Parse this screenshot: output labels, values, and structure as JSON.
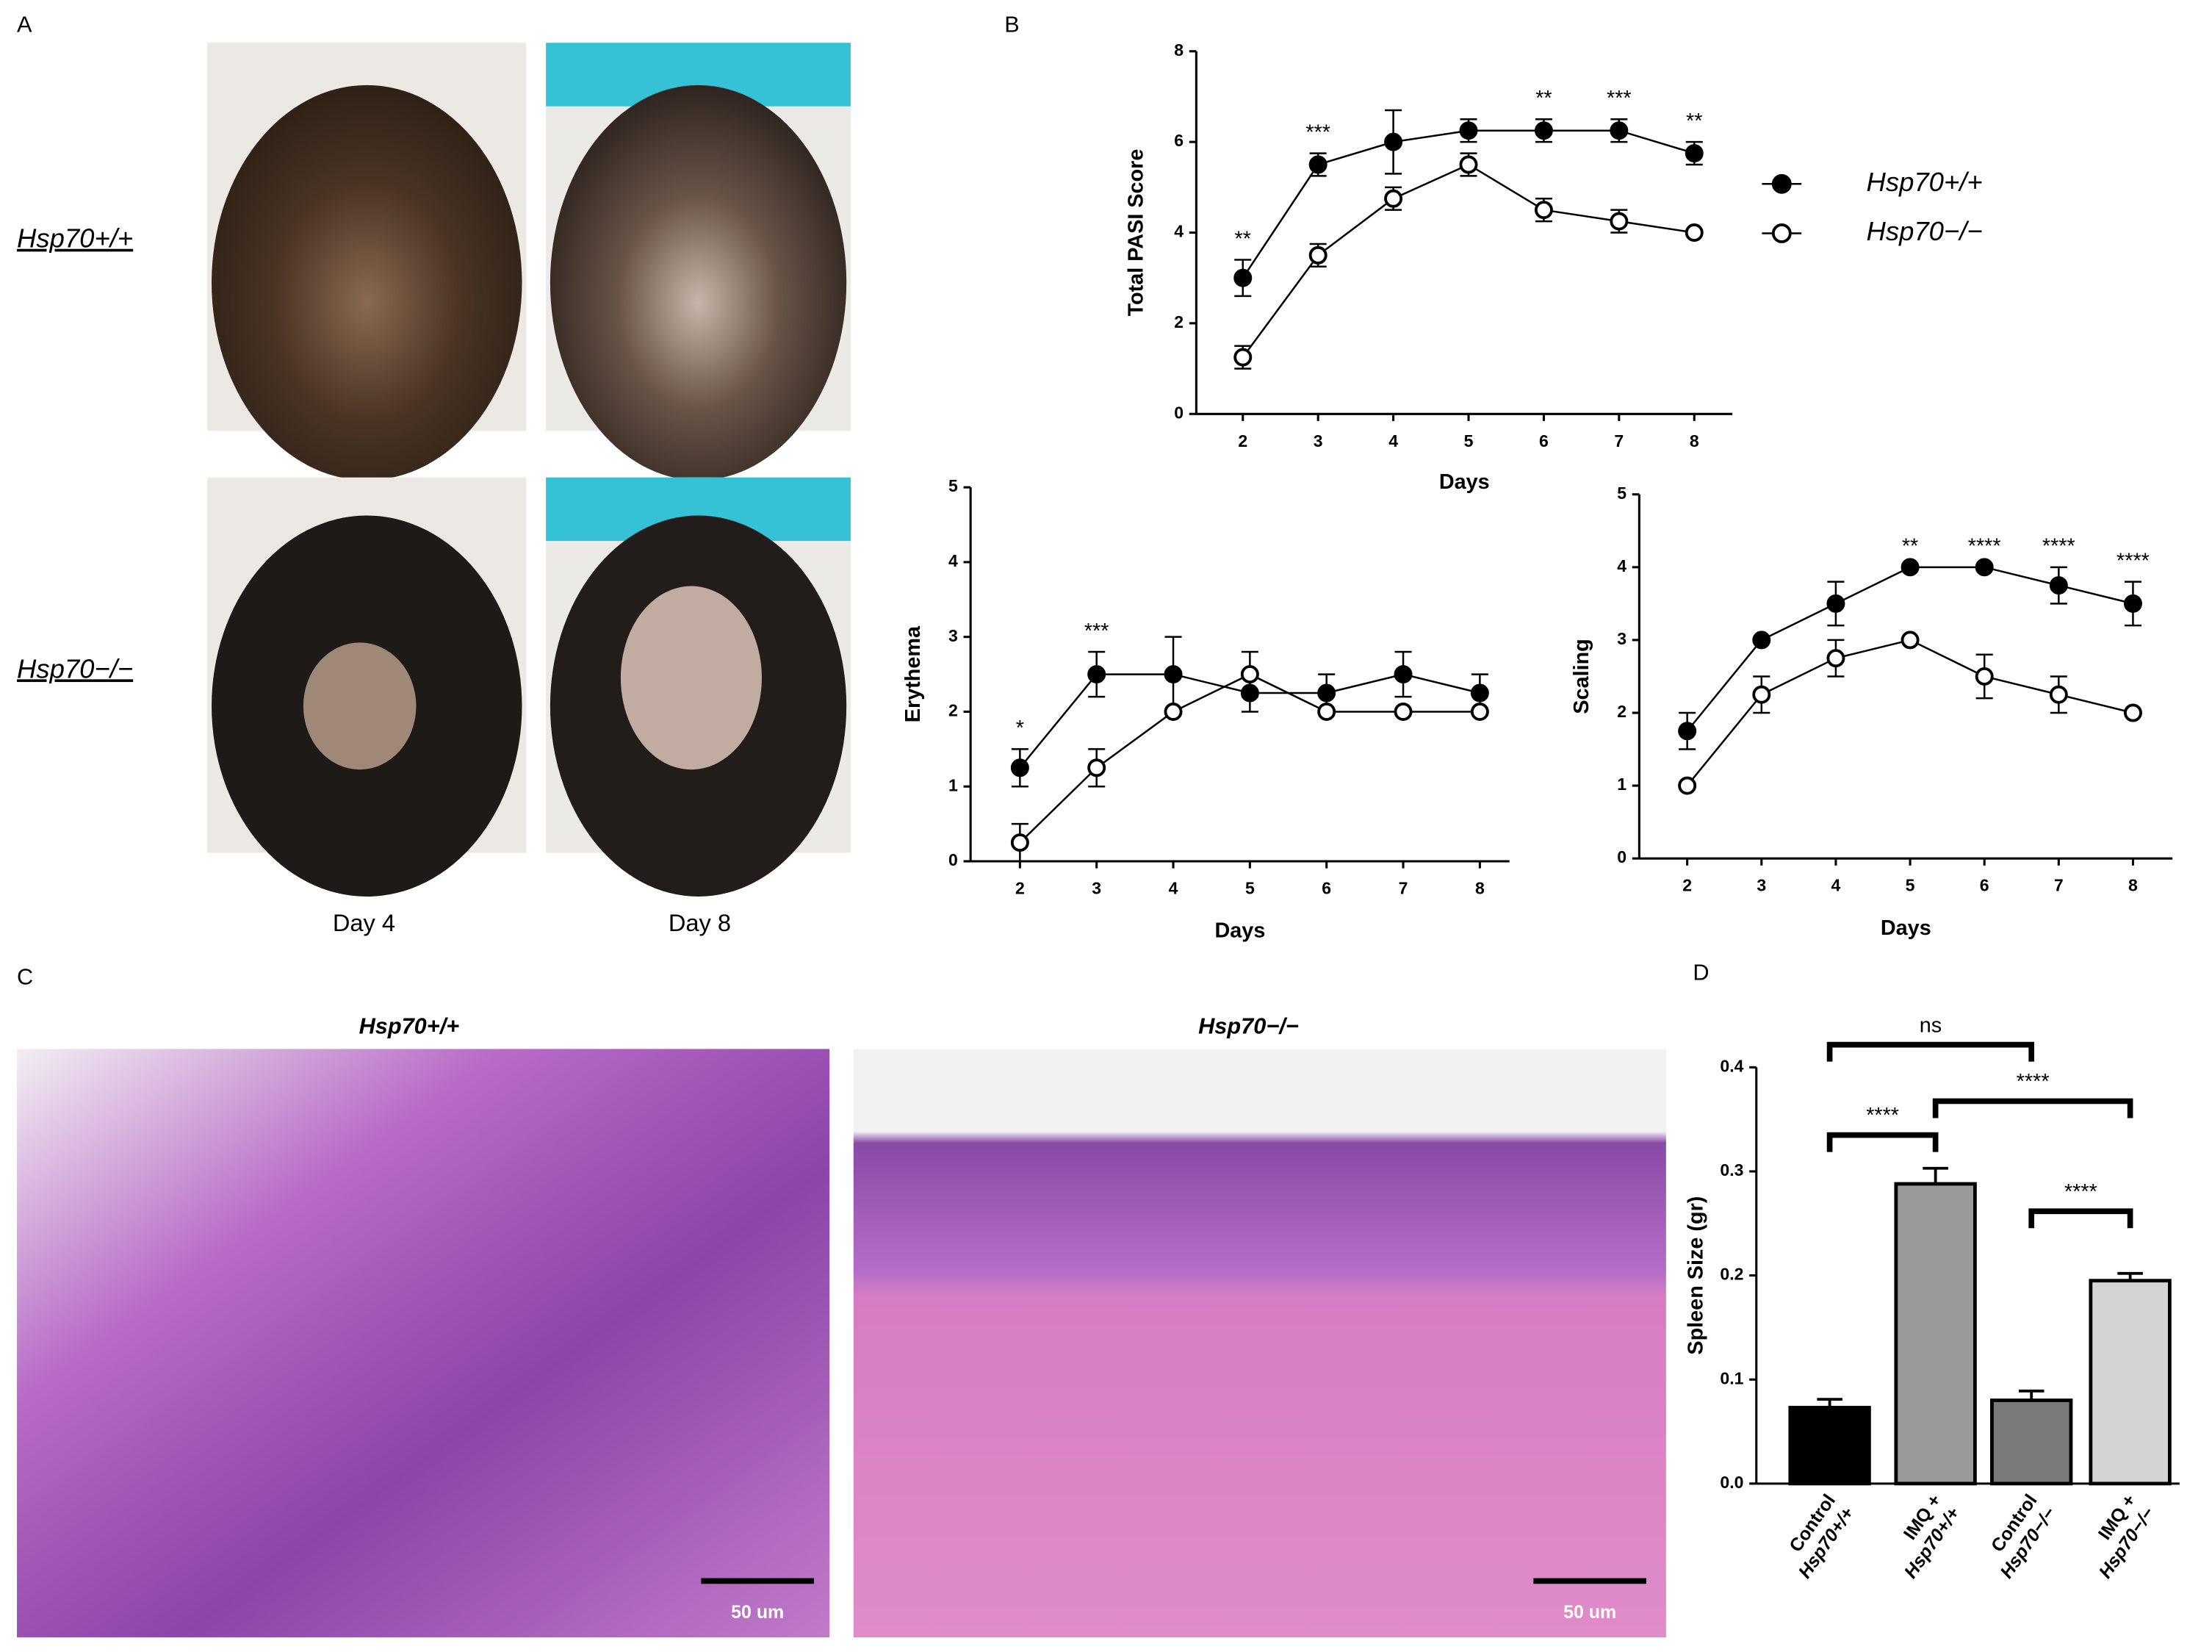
{
  "figure": {
    "panel_labels": [
      "A",
      "B",
      "C",
      "D"
    ],
    "photo_rows": [
      "Hsp70+/+",
      "Hsp70−/−"
    ],
    "photo_cols": [
      "Day 4",
      "Day 8"
    ],
    "histology_titles": [
      "Hsp70+/+",
      "Hsp70−/−"
    ],
    "scale_bars": [
      "50 um",
      "50 um"
    ]
  },
  "chart_data": [
    {
      "type": "line",
      "ylabel": "Total PASI Score",
      "xlabel": "Days",
      "x": [
        2,
        3,
        4,
        5,
        6,
        7,
        8
      ],
      "ylim": [
        0,
        8
      ],
      "yticks": [
        0,
        2,
        4,
        6,
        8
      ],
      "legend": "right",
      "series": [
        {
          "name": "Hsp70+/+",
          "color": "#000000",
          "marker": "filled",
          "values": [
            3,
            5.5,
            6,
            6.25,
            6.25,
            6.25,
            5.75
          ],
          "errors": [
            0.4,
            0.25,
            0.7,
            0.25,
            0.25,
            0.25,
            0.25
          ]
        },
        {
          "name": "Hsp70−/−",
          "color": "#000000",
          "marker": "open",
          "values": [
            1.25,
            3.5,
            4.75,
            5.5,
            4.5,
            4.25,
            4
          ],
          "errors": [
            0.25,
            0.25,
            0.25,
            0.25,
            0.25,
            0.25,
            0
          ]
        }
      ],
      "annotations": [
        "**",
        "***",
        null,
        null,
        "**",
        "***",
        "**"
      ]
    },
    {
      "type": "line",
      "ylabel": "Erythema",
      "xlabel": "Days",
      "x": [
        2,
        3,
        4,
        5,
        6,
        7,
        8
      ],
      "ylim": [
        0,
        5
      ],
      "yticks": [
        0,
        1,
        2,
        3,
        4,
        5
      ],
      "series": [
        {
          "color": "#000000",
          "marker": "filled",
          "values": [
            1.25,
            2.5,
            2.5,
            2.25,
            2.25,
            2.5,
            2.25
          ],
          "errors": [
            0.25,
            0.3,
            0.5,
            0.25,
            0.25,
            0.3,
            0.25
          ]
        },
        {
          "color": "#000000",
          "marker": "open",
          "values": [
            0.25,
            1.25,
            2,
            2.5,
            2,
            2,
            2
          ],
          "errors": [
            0.25,
            0.25,
            0,
            0.3,
            0,
            0,
            0
          ]
        }
      ],
      "annotations": [
        "*",
        "***",
        null,
        null,
        null,
        null,
        null
      ]
    },
    {
      "type": "line",
      "ylabel": "Scaling",
      "xlabel": "Days",
      "x": [
        2,
        3,
        4,
        5,
        6,
        7,
        8
      ],
      "ylim": [
        0,
        5
      ],
      "yticks": [
        0,
        1,
        2,
        3,
        4,
        5
      ],
      "series": [
        {
          "color": "#000000",
          "marker": "filled",
          "values": [
            1.75,
            3,
            3.5,
            4,
            4,
            3.75,
            3.5
          ],
          "errors": [
            0.25,
            0,
            0.3,
            0,
            0,
            0.25,
            0.3
          ]
        },
        {
          "color": "#000000",
          "marker": "open",
          "values": [
            1,
            2.25,
            2.75,
            3,
            2.5,
            2.25,
            2
          ],
          "errors": [
            0,
            0.25,
            0.25,
            0,
            0.3,
            0.25,
            0
          ]
        }
      ],
      "annotations": [
        null,
        null,
        null,
        "**",
        "****",
        "****",
        "****"
      ]
    },
    {
      "type": "bar",
      "ylabel": "Spleen Size (gr)",
      "categories": [
        [
          "Control",
          "Hsp70+/+"
        ],
        [
          "IMQ +",
          "Hsp70+/+"
        ],
        [
          "Control",
          "Hsp70−/−"
        ],
        [
          "IMQ +",
          "Hsp70−/−"
        ]
      ],
      "values": [
        0.073,
        0.288,
        0.08,
        0.195
      ],
      "errors": [
        0.008,
        0.015,
        0.009,
        0.007
      ],
      "colors": [
        "#000000",
        "#9a9a9a",
        "#7a7a7a",
        "#d4d4d4"
      ],
      "ylim": [
        0,
        0.4
      ],
      "yticks": [
        {
          "value": 0,
          "label": "0.0"
        },
        0.1,
        0.2,
        0.3,
        0.4
      ],
      "comparisons": [
        {
          "from": 0,
          "to": 2,
          "label": "ns"
        },
        {
          "from": 0,
          "to": 1,
          "label": "****"
        },
        {
          "from": 1,
          "to": 3,
          "label": "****"
        },
        {
          "from": 2,
          "to": 3,
          "label": "****"
        }
      ]
    }
  ]
}
